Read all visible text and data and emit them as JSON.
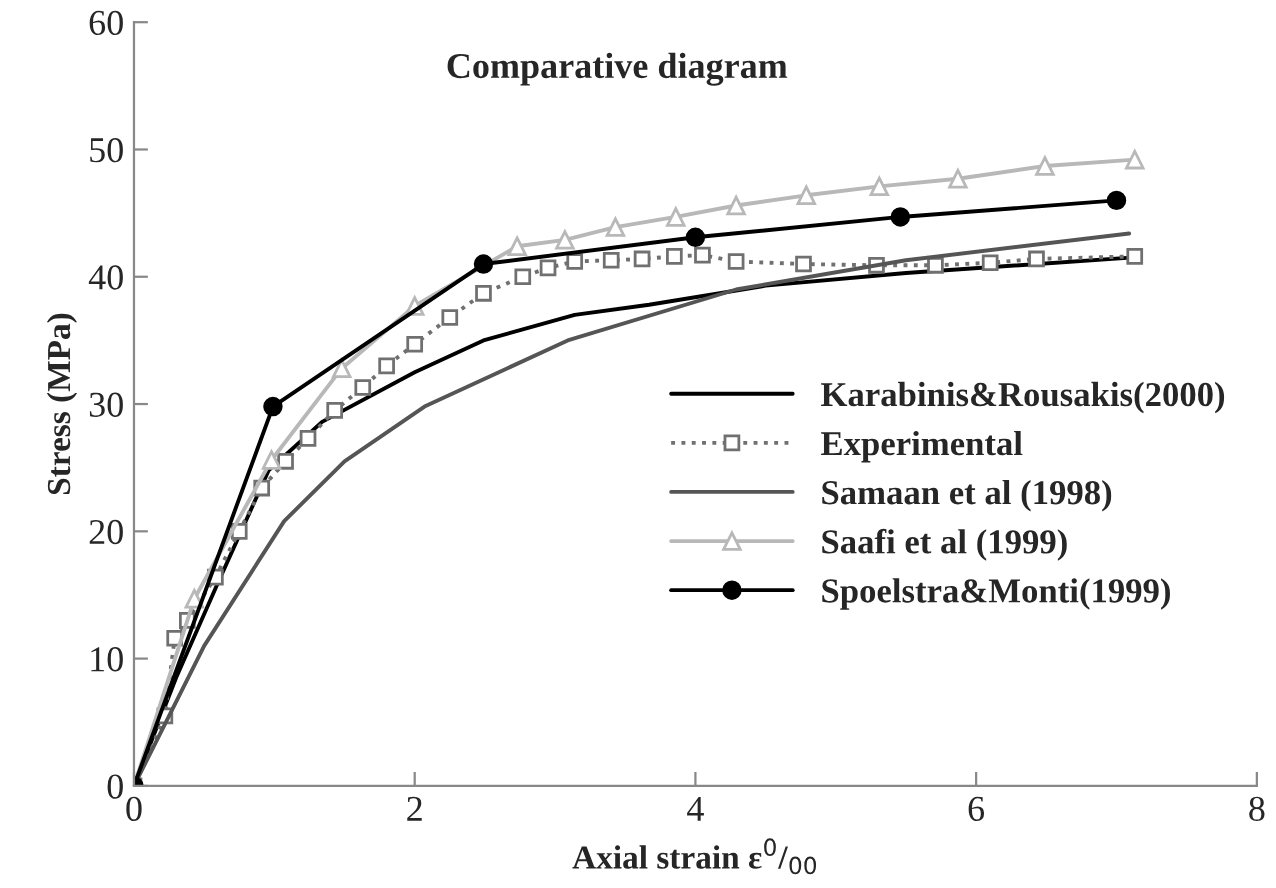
{
  "chart_data": {
    "type": "line",
    "title": "Comparative diagram",
    "xlabel": "Axial strain ε$^{0}$/$_{00}$",
    "ylabel": "Stress (MPa)",
    "xlim": [
      0,
      8
    ],
    "ylim": [
      0,
      60
    ],
    "xticks": [
      0,
      2,
      4,
      6,
      8
    ],
    "yticks": [
      0,
      10,
      20,
      30,
      40,
      50,
      60
    ],
    "grid": false,
    "legend": "right",
    "series": [
      {
        "name": "Karabinis&Rousakis(2000)",
        "color": "#000000",
        "marker": "none",
        "line_style": "solid",
        "x": [
          0,
          0.3,
          0.6,
          0.96,
          1.34,
          2.0,
          2.49,
          3.14,
          3.67,
          4.5,
          5.5,
          7.1
        ],
        "values": [
          0,
          8.5,
          16,
          24.8,
          28.6,
          32.5,
          35,
          37,
          37.8,
          39.3,
          40.3,
          41.5
        ]
      },
      {
        "name": "Experimental",
        "color": "#707070",
        "marker": "square",
        "line_style": "dotted",
        "x": [
          0,
          0.22,
          0.29,
          0.38,
          0.58,
          0.75,
          0.91,
          1.08,
          1.24,
          1.43,
          1.63,
          1.8,
          2.0,
          2.25,
          2.49,
          2.77,
          2.95,
          3.14,
          3.4,
          3.62,
          3.85,
          4.05,
          4.29,
          4.77,
          5.29,
          5.71,
          6.1,
          6.43,
          7.13
        ],
        "values": [
          0,
          5.5,
          11.6,
          13,
          16.4,
          20,
          23.4,
          25.5,
          27.3,
          29.5,
          31.3,
          33,
          34.7,
          36.8,
          38.7,
          40,
          40.7,
          41.2,
          41.3,
          41.4,
          41.6,
          41.7,
          41.2,
          41,
          40.9,
          40.9,
          41.1,
          41.4,
          41.6
        ]
      },
      {
        "name": "Samaan et al (1998)",
        "color": "#555555",
        "marker": "none",
        "line_style": "solid",
        "x": [
          0,
          0.5,
          1.07,
          1.5,
          2.07,
          3.09,
          4.29,
          5.5,
          7.09
        ],
        "values": [
          0,
          11,
          20.8,
          25.5,
          29.8,
          35,
          39,
          41.3,
          43.4
        ]
      },
      {
        "name": "Saafi et al (1999)",
        "color": "#b8b8b8",
        "marker": "triangle",
        "line_style": "solid",
        "x": [
          0,
          0.43,
          0.98,
          1.48,
          2.0,
          2.73,
          3.07,
          3.43,
          3.86,
          4.29,
          4.79,
          5.31,
          5.87,
          6.49,
          7.13
        ],
        "values": [
          0,
          14.7,
          25.6,
          32.8,
          37.7,
          42.4,
          42.9,
          43.9,
          44.7,
          45.6,
          46.4,
          47.1,
          47.7,
          48.7,
          49.2
        ]
      },
      {
        "name": "Spoelstra&Monti(1999)",
        "color": "#000000",
        "marker": "circle",
        "line_style": "solid",
        "x": [
          0,
          0.99,
          2.49,
          4.0,
          5.46,
          7.0
        ],
        "values": [
          0,
          29.8,
          41,
          43.1,
          44.7,
          46
        ]
      }
    ]
  }
}
